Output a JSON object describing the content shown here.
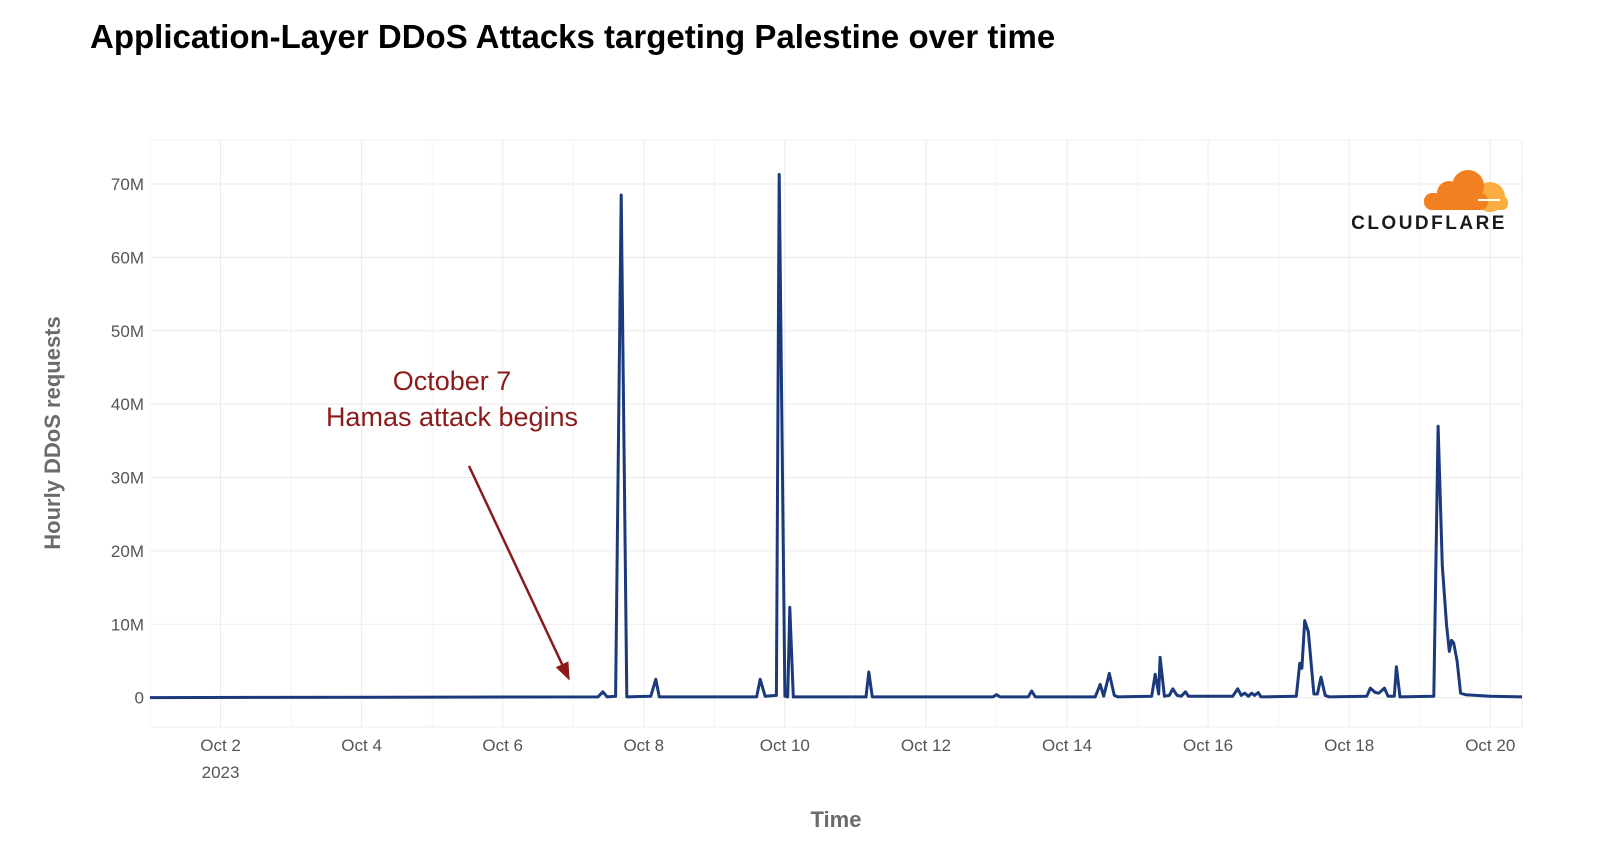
{
  "chart_data": {
    "type": "line",
    "title": "Application-Layer DDoS Attacks targeting Palestine over time",
    "xlabel": "Time",
    "ylabel": "Hourly DDoS requests",
    "x_ticks": [
      {
        "day": 2,
        "label": "Oct 2",
        "sublabel": "2023"
      },
      {
        "day": 4,
        "label": "Oct 4"
      },
      {
        "day": 6,
        "label": "Oct 6"
      },
      {
        "day": 8,
        "label": "Oct 8"
      },
      {
        "day": 10,
        "label": "Oct 10"
      },
      {
        "day": 12,
        "label": "Oct 12"
      },
      {
        "day": 14,
        "label": "Oct 14"
      },
      {
        "day": 16,
        "label": "Oct 16"
      },
      {
        "day": 18,
        "label": "Oct 18"
      },
      {
        "day": 20,
        "label": "Oct 20"
      }
    ],
    "y_ticks": [
      {
        "value": 0,
        "label": "0"
      },
      {
        "value": 10,
        "label": "10M"
      },
      {
        "value": 20,
        "label": "20M"
      },
      {
        "value": 30,
        "label": "30M"
      },
      {
        "value": 40,
        "label": "40M"
      },
      {
        "value": 50,
        "label": "50M"
      },
      {
        "value": 60,
        "label": "60M"
      },
      {
        "value": 70,
        "label": "70M"
      }
    ],
    "xlim_day": [
      1.0,
      20.45
    ],
    "ylim_millions": [
      -4,
      76
    ],
    "grid": true,
    "series": [
      {
        "color": "#1a3a7c",
        "points": [
          [
            1.0,
            0
          ],
          [
            7.35,
            0.1
          ],
          [
            7.42,
            0.8
          ],
          [
            7.48,
            0.1
          ],
          [
            7.6,
            0.2
          ],
          [
            7.68,
            68.5
          ],
          [
            7.76,
            0.1
          ],
          [
            8.1,
            0.2
          ],
          [
            8.17,
            2.5
          ],
          [
            8.22,
            0.1
          ],
          [
            9.6,
            0.1
          ],
          [
            9.65,
            2.5
          ],
          [
            9.72,
            0.2
          ],
          [
            9.88,
            0.3
          ],
          [
            9.92,
            71.3
          ],
          [
            10.0,
            0.2
          ],
          [
            10.04,
            0.1
          ],
          [
            10.07,
            12.3
          ],
          [
            10.12,
            0.1
          ],
          [
            11.15,
            0.1
          ],
          [
            11.19,
            3.5
          ],
          [
            11.24,
            0.1
          ],
          [
            12.95,
            0.1
          ],
          [
            13.0,
            0.4
          ],
          [
            13.05,
            0.1
          ],
          [
            13.45,
            0.1
          ],
          [
            13.5,
            0.9
          ],
          [
            13.55,
            0.1
          ],
          [
            14.4,
            0.1
          ],
          [
            14.47,
            1.8
          ],
          [
            14.52,
            0.2
          ],
          [
            14.6,
            3.3
          ],
          [
            14.67,
            0.3
          ],
          [
            14.72,
            0.1
          ],
          [
            15.2,
            0.2
          ],
          [
            15.25,
            3.2
          ],
          [
            15.3,
            0.5
          ],
          [
            15.32,
            5.5
          ],
          [
            15.38,
            0.2
          ],
          [
            15.45,
            0.3
          ],
          [
            15.5,
            1.2
          ],
          [
            15.56,
            0.3
          ],
          [
            15.62,
            0.2
          ],
          [
            15.68,
            0.8
          ],
          [
            15.72,
            0.2
          ],
          [
            16.35,
            0.2
          ],
          [
            16.42,
            1.2
          ],
          [
            16.47,
            0.3
          ],
          [
            16.52,
            0.6
          ],
          [
            16.57,
            0.2
          ],
          [
            16.62,
            0.6
          ],
          [
            16.66,
            0.3
          ],
          [
            16.71,
            0.7
          ],
          [
            16.75,
            0.1
          ],
          [
            17.25,
            0.2
          ],
          [
            17.3,
            4.7
          ],
          [
            17.33,
            4.0
          ],
          [
            17.37,
            10.5
          ],
          [
            17.42,
            9.0
          ],
          [
            17.5,
            0.5
          ],
          [
            17.55,
            0.5
          ],
          [
            17.6,
            2.8
          ],
          [
            17.66,
            0.3
          ],
          [
            17.72,
            0.1
          ],
          [
            18.25,
            0.2
          ],
          [
            18.3,
            1.3
          ],
          [
            18.37,
            0.7
          ],
          [
            18.42,
            0.6
          ],
          [
            18.5,
            1.3
          ],
          [
            18.55,
            0.2
          ],
          [
            18.64,
            0.2
          ],
          [
            18.67,
            4.2
          ],
          [
            18.72,
            0.1
          ],
          [
            19.2,
            0.2
          ],
          [
            19.26,
            37.0
          ],
          [
            19.32,
            18.0
          ],
          [
            19.38,
            10.0
          ],
          [
            19.42,
            6.3
          ],
          [
            19.45,
            7.8
          ],
          [
            19.48,
            7.5
          ],
          [
            19.53,
            5.0
          ],
          [
            19.58,
            0.6
          ],
          [
            19.65,
            0.4
          ],
          [
            20.0,
            0.2
          ],
          [
            20.45,
            0.1
          ]
        ]
      }
    ],
    "annotation": {
      "lines": [
        "October 7",
        "Hamas attack begins"
      ],
      "arrow_target": {
        "day": 6.95,
        "value": 1.5
      }
    }
  },
  "logo": {
    "text": "CLOUDFLARE",
    "colors": {
      "cloud_front": "#f38020",
      "cloud_back": "#fbad41"
    }
  }
}
